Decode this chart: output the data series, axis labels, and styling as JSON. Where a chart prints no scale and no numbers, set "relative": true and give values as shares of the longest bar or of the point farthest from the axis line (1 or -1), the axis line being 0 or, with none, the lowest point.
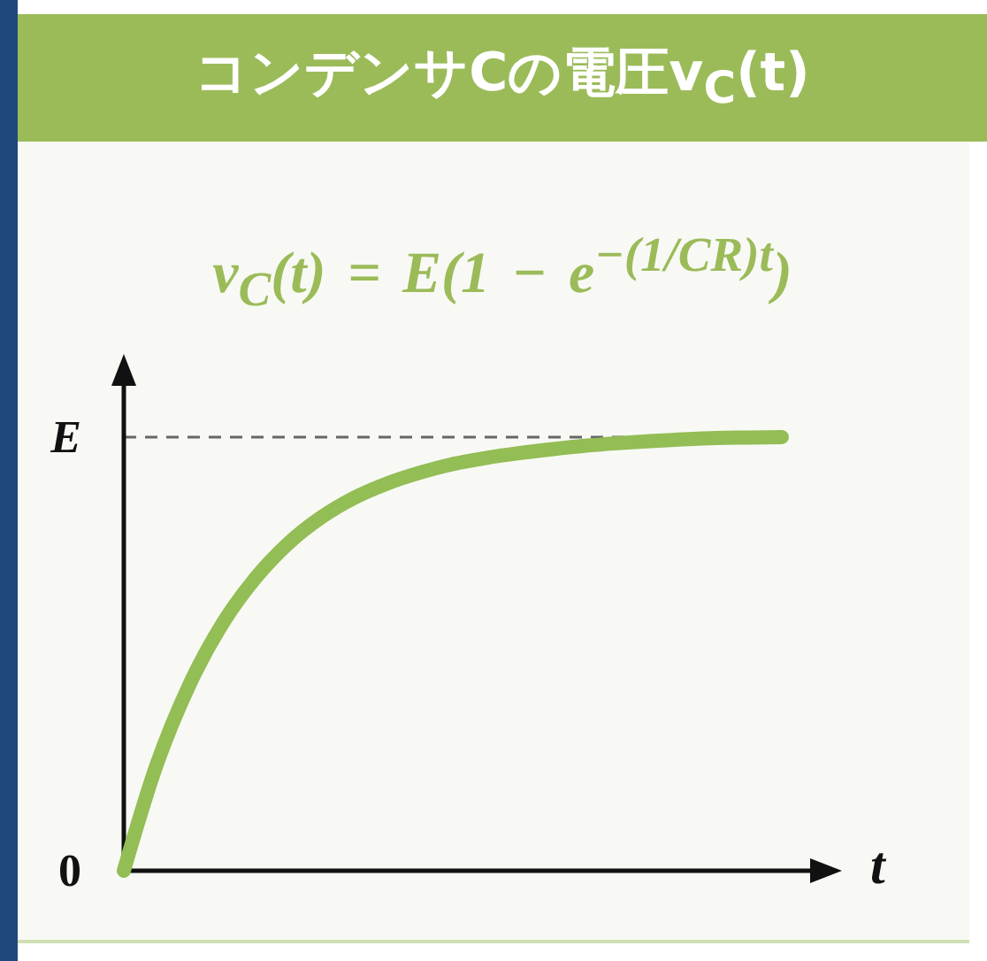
{
  "chart_data": {
    "type": "line",
    "title": "コンデンサCの電圧v$_{C}$(t)",
    "subtitle": "v$_{C}$(t) = E(1 − e$^{−(1/CR)t}$)",
    "xlabel": "t",
    "relative": true,
    "categories": [
      null,
      null,
      null,
      null,
      null,
      null,
      null,
      null,
      null,
      null,
      null,
      null,
      null,
      null,
      null,
      null,
      null,
      null,
      null,
      null,
      null
    ],
    "values": [
      0,
      0.245,
      0.43,
      0.57,
      0.675,
      0.755,
      0.815,
      0.86,
      0.893,
      0.918,
      0.938,
      0.952,
      0.963,
      0.972,
      0.98,
      0.986,
      0.991,
      0.995,
      0.998,
      0.999,
      1.0
    ],
    "color": "#93bd55",
    "ref_lines": [
      {
        "axis": "y",
        "value": 1,
        "label": "E",
        "color": "#666666",
        "line_style": "dashed"
      }
    ],
    "annotations": [
      "0"
    ]
  }
}
